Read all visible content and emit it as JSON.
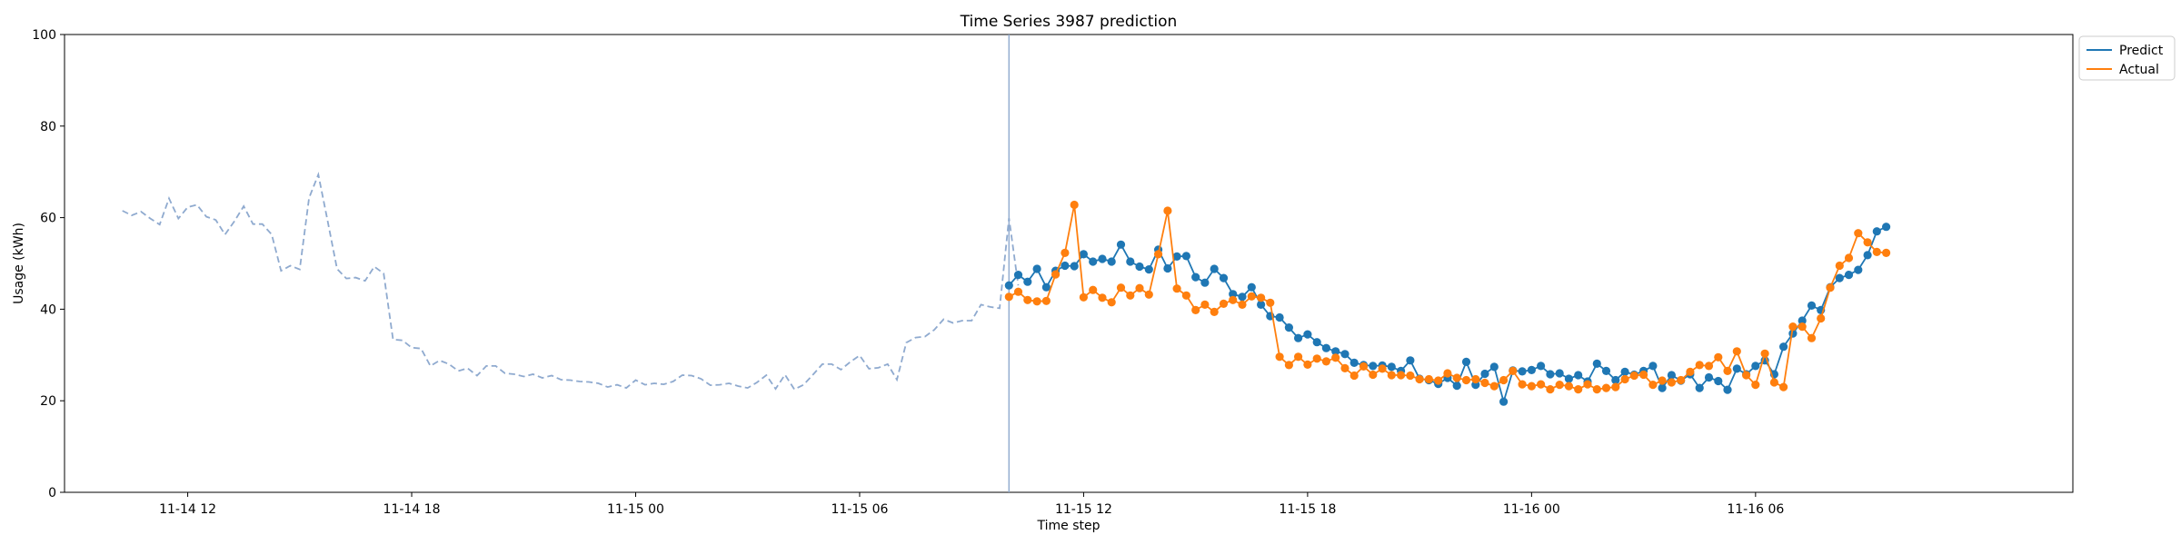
{
  "chart_data": {
    "type": "line",
    "title": "Time Series 3987 prediction",
    "xlabel": "Time step",
    "ylabel": "Usage (kWh)",
    "ylim": [
      0,
      100
    ],
    "yticks": [
      0,
      20,
      40,
      60,
      80,
      100
    ],
    "xlim": [
      "2024-11-14 08:42",
      "2024-11-16 14:30"
    ],
    "xticks": [
      {
        "t": "2024-11-14 12:00",
        "label": "11-14 12"
      },
      {
        "t": "2024-11-14 18:00",
        "label": "11-14 18"
      },
      {
        "t": "2024-11-15 00:00",
        "label": "11-15 00"
      },
      {
        "t": "2024-11-15 06:00",
        "label": "11-15 06"
      },
      {
        "t": "2024-11-15 12:00",
        "label": "11-15 12"
      },
      {
        "t": "2024-11-15 18:00",
        "label": "11-15 18"
      },
      {
        "t": "2024-11-16 00:00",
        "label": "11-16 00"
      },
      {
        "t": "2024-11-16 06:00",
        "label": "11-16 06"
      }
    ],
    "step_minutes": 15,
    "forecast_start": "2024-11-15 10:00",
    "legend": {
      "position": "top-right",
      "outside": true
    },
    "history": {
      "start": "2024-11-14 10:15",
      "color": "#8faacf",
      "values": [
        61.5,
        60.5,
        61.3,
        59.8,
        58.5,
        64.2,
        59.8,
        62.3,
        62.8,
        60.2,
        59.5,
        56.3,
        59.2,
        62.5,
        58.6,
        58.6,
        56.3,
        48.4,
        49.5,
        48.7,
        64.3,
        69.4,
        59.2,
        48.8,
        46.7,
        46.9,
        46.2,
        49.3,
        47.8,
        33.4,
        33.2,
        31.6,
        31.4,
        27.6,
        28.8,
        28.0,
        26.5,
        27.1,
        25.5,
        27.6,
        27.6,
        26.0,
        25.8,
        25.3,
        25.8,
        25.0,
        25.5,
        24.6,
        24.5,
        24.2,
        24.1,
        23.8,
        23.0,
        23.5,
        22.8,
        24.5,
        23.5,
        23.8,
        23.6,
        24.2,
        25.6,
        25.5,
        24.8,
        23.4,
        23.5,
        23.8,
        23.2,
        22.8,
        24.0,
        25.6,
        22.6,
        25.7,
        22.5,
        23.5,
        25.7,
        28.0,
        28.0,
        26.8,
        28.5,
        29.9,
        27.0,
        27.2,
        28.0,
        24.6,
        32.7,
        33.8,
        34.0,
        35.5,
        37.8,
        37.0,
        37.5,
        37.5,
        41.0,
        40.5,
        40.2,
        59.9,
        45.2
      ]
    },
    "series": [
      {
        "name": "Predict",
        "color": "#1f77b4",
        "start": "2024-11-15 10:00",
        "values": [
          45.2,
          47.5,
          46.0,
          48.8,
          44.8,
          48.4,
          49.5,
          49.4,
          52.0,
          50.4,
          51.0,
          50.4,
          54.1,
          50.4,
          49.3,
          48.7,
          53.0,
          48.9,
          51.5,
          51.6,
          47.0,
          45.8,
          48.8,
          46.8,
          43.3,
          42.7,
          44.8,
          41.0,
          38.5,
          38.2,
          36.0,
          33.7,
          34.5,
          32.8,
          31.5,
          30.8,
          30.2,
          28.3,
          27.8,
          27.6,
          27.7,
          27.4,
          26.5,
          28.8,
          24.8,
          24.5,
          23.7,
          25.0,
          23.3,
          28.5,
          23.5,
          25.9,
          27.4,
          19.8,
          26.6,
          26.4,
          26.7,
          27.6,
          25.8,
          26.0,
          24.8,
          25.6,
          24.2,
          28.1,
          26.5,
          24.5,
          26.3,
          25.7,
          26.5,
          27.6,
          22.8,
          25.6,
          24.4,
          25.8,
          22.8,
          25.1,
          24.3,
          22.4,
          27.0,
          25.8,
          27.6,
          28.8,
          25.8,
          31.8,
          34.7,
          37.5,
          40.8,
          39.8,
          44.8,
          46.8,
          47.5,
          48.6,
          51.8,
          57.0,
          58.0
        ]
      },
      {
        "name": "Actual",
        "color": "#ff7f0e",
        "start": "2024-11-15 10:00",
        "values": [
          42.7,
          43.8,
          42.0,
          41.7,
          41.8,
          47.6,
          52.3,
          62.8,
          42.6,
          44.2,
          42.5,
          41.5,
          44.7,
          43.0,
          44.6,
          43.2,
          52.0,
          61.5,
          44.5,
          43.0,
          39.8,
          41.0,
          39.4,
          41.2,
          42.0,
          41.0,
          42.8,
          42.5,
          41.4,
          29.6,
          27.8,
          29.6,
          27.9,
          29.2,
          28.6,
          29.4,
          27.1,
          25.5,
          27.5,
          25.7,
          27.0,
          25.6,
          25.6,
          25.5,
          24.7,
          24.7,
          24.4,
          26.0,
          25.0,
          24.5,
          24.7,
          23.9,
          23.2,
          24.5,
          26.5,
          23.6,
          23.2,
          23.6,
          22.5,
          23.5,
          23.2,
          22.5,
          23.6,
          22.5,
          22.8,
          23.0,
          24.7,
          25.5,
          25.7,
          23.5,
          24.4,
          24.0,
          24.5,
          26.3,
          27.8,
          27.6,
          29.5,
          26.5,
          30.8,
          25.6,
          23.5,
          30.3,
          24.0,
          23.0,
          36.2,
          36.2,
          33.7,
          38.0,
          44.7,
          49.5,
          51.2,
          56.6,
          54.6,
          52.5,
          52.3
        ]
      }
    ]
  }
}
